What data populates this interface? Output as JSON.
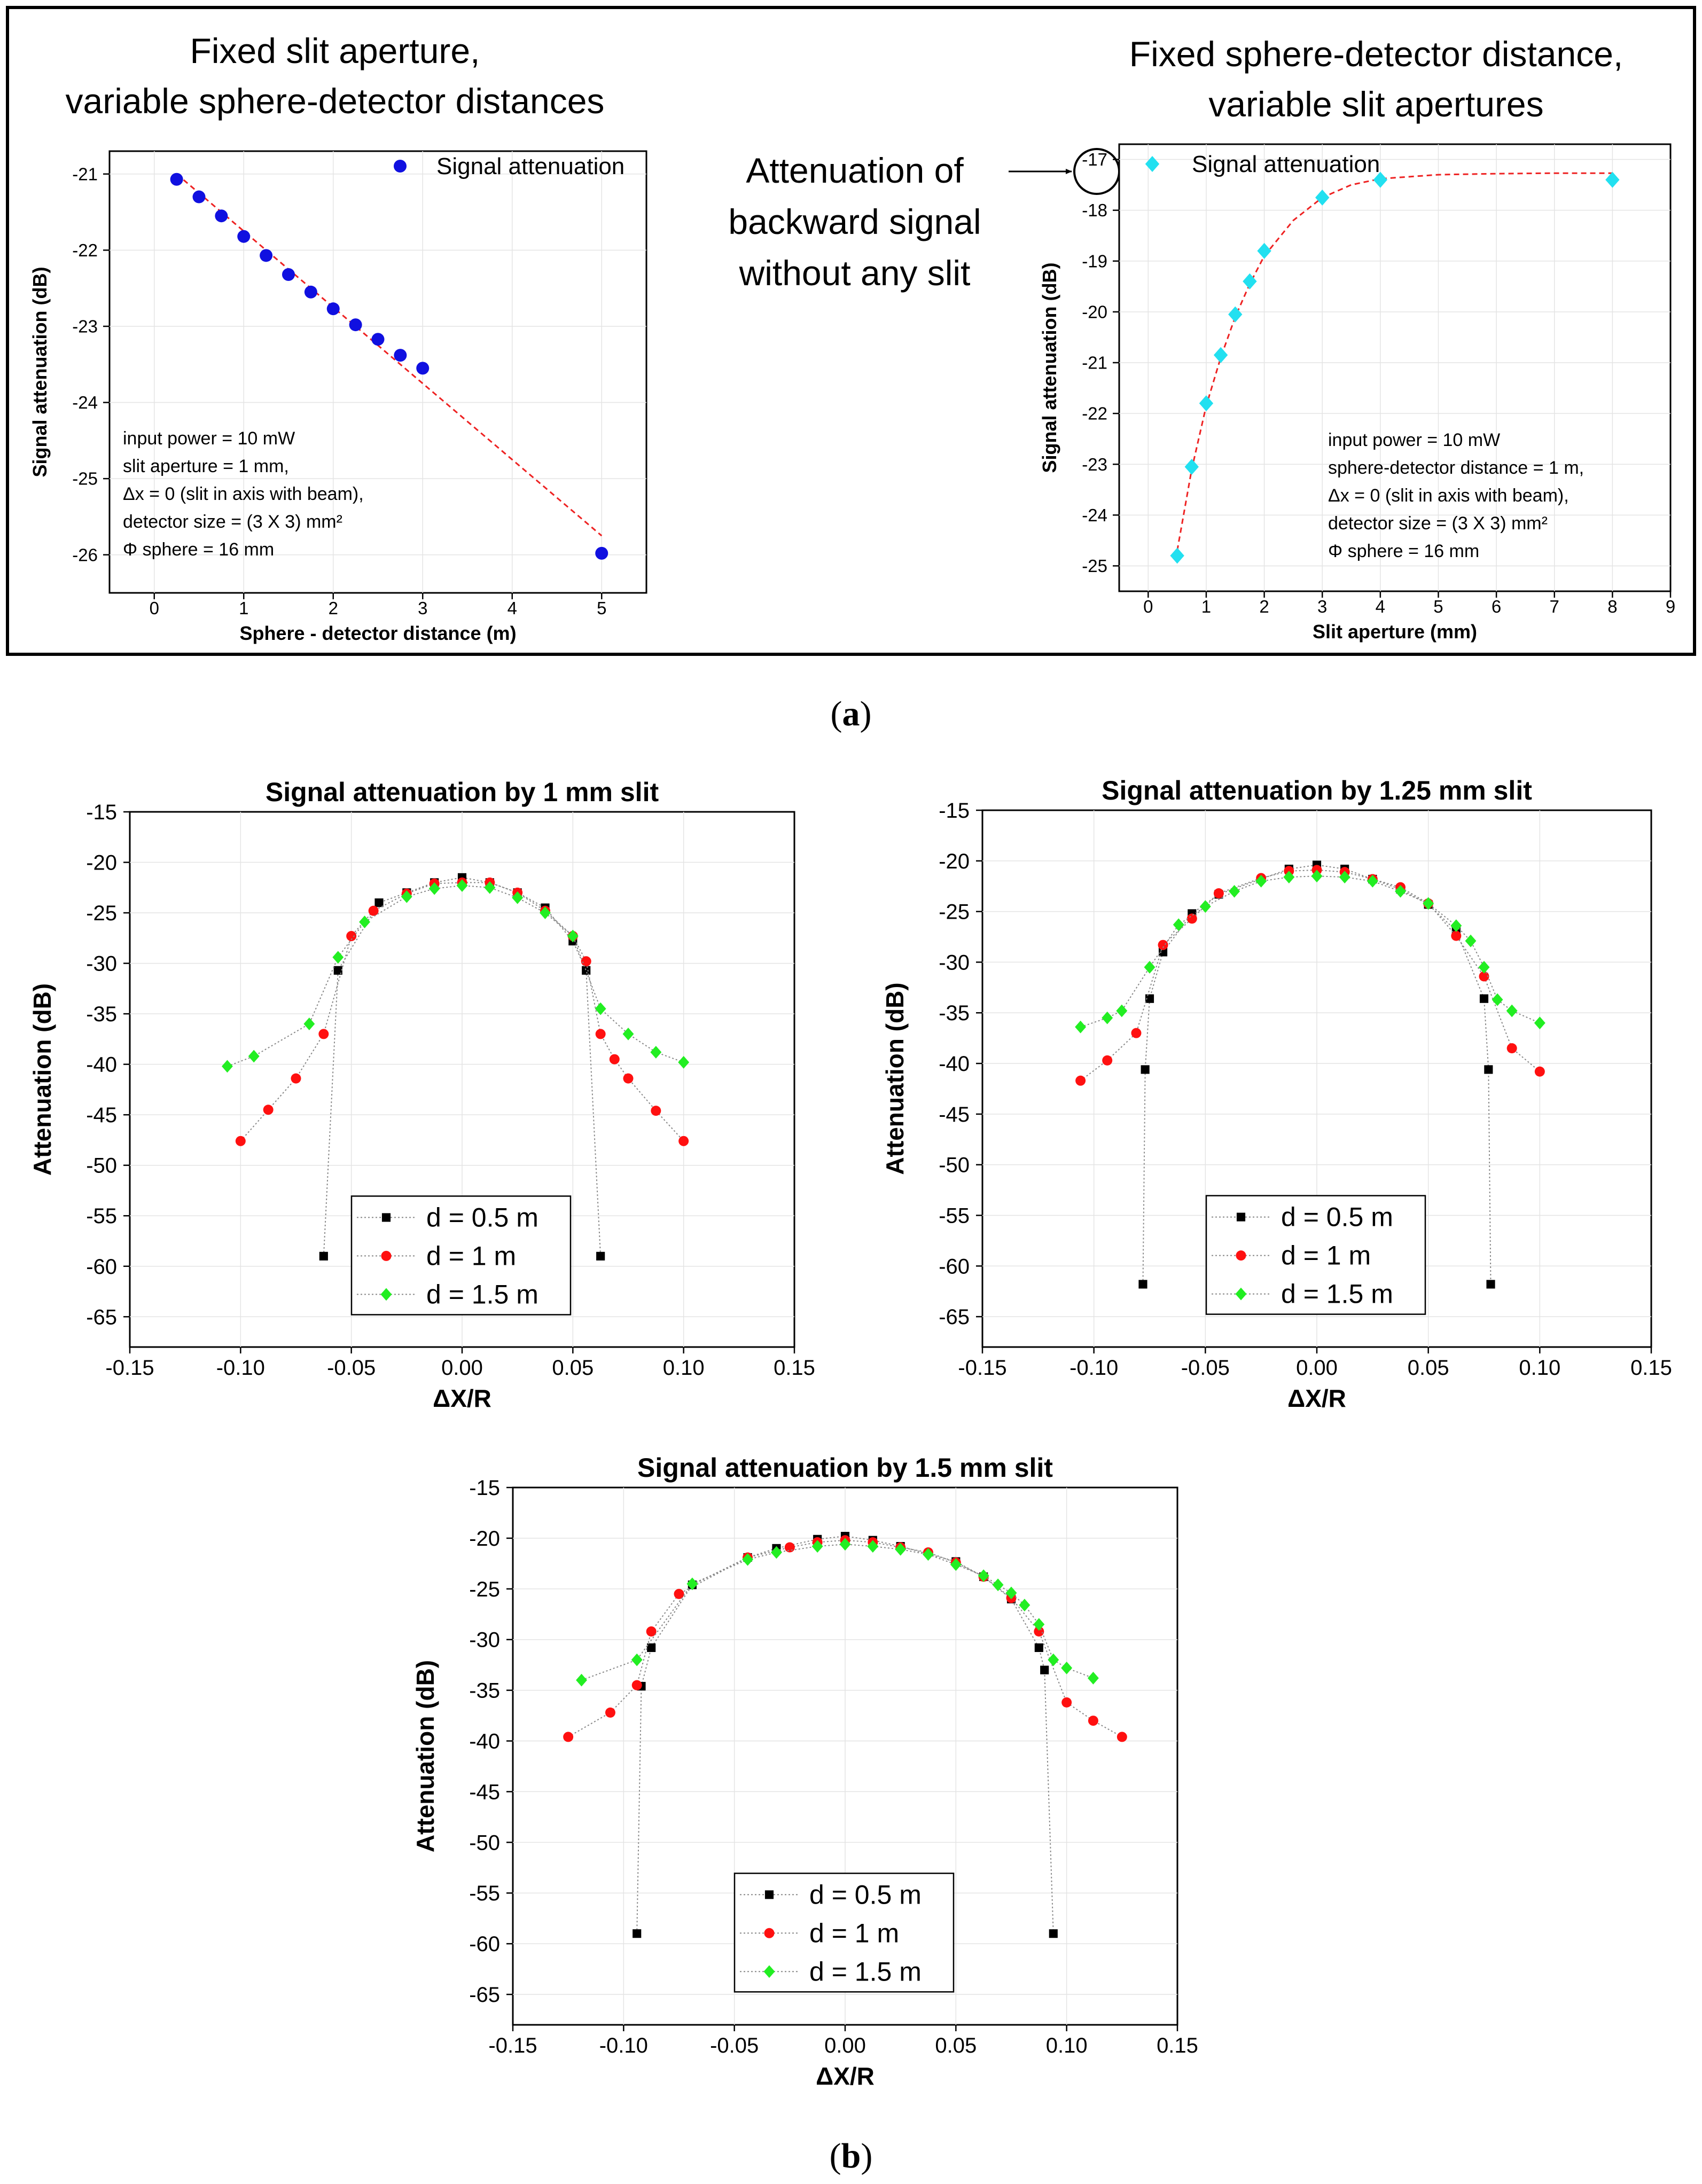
{
  "panel_a": {
    "label_open": "(",
    "label_letter": "a",
    "label_close": ")",
    "left_heading": [
      "Fixed slit aperture,",
      "variable sphere-detector distances"
    ],
    "right_heading": [
      "Fixed sphere-detector distance,",
      "variable slit apertures"
    ],
    "callout": [
      "Attenuation of",
      "backward signal",
      "without any slit"
    ]
  },
  "panel_b": {
    "label_open": "(",
    "label_letter": "b",
    "label_close": ")"
  },
  "colors": {
    "blue": "#1010e0",
    "cyan": "#22e0f0",
    "red_dash": "#ee2222",
    "black": "#000000",
    "red": "#ff1010",
    "green": "#22ee22"
  },
  "chart_data": [
    {
      "id": "a-left",
      "type": "scatter",
      "title": "",
      "xlabel": "Sphere - detector distance (m)",
      "ylabel": "Signal attenuation (dB)",
      "xlim": [
        -0.5,
        5.5
      ],
      "ylim": [
        -26.5,
        -20.7
      ],
      "xticks": [
        0,
        1,
        2,
        3,
        4,
        5
      ],
      "yticks": [
        -21,
        -22,
        -23,
        -24,
        -25,
        -26
      ],
      "legend": "top-right",
      "series": [
        {
          "name": "Signal attenuation",
          "marker": "circle",
          "color": "#1010e0",
          "x": [
            0.25,
            0.5,
            0.75,
            1.0,
            1.25,
            1.5,
            1.75,
            2.0,
            2.25,
            2.5,
            2.75,
            3.0,
            5.0
          ],
          "y": [
            -21.07,
            -21.3,
            -21.55,
            -21.82,
            -22.07,
            -22.32,
            -22.55,
            -22.77,
            -22.98,
            -23.17,
            -23.38,
            -23.55,
            -25.98
          ]
        }
      ],
      "fit": {
        "kind": "linear",
        "color": "#ee2222",
        "x": [
          0.25,
          5.0
        ],
        "y": [
          -21.0,
          -25.75
        ]
      },
      "annotation_lines": [
        "input power = 10 mW",
        "slit aperture = 1 mm,",
        "Δx = 0 (slit in axis with beam),",
        "detector size = (3 X 3) mm²",
        "Φ sphere = 16 mm"
      ]
    },
    {
      "id": "a-right",
      "type": "scatter",
      "title": "",
      "xlabel": "Slit aperture (mm)",
      "ylabel": "Signal attenuation (dB)",
      "xlim": [
        -0.5,
        9
      ],
      "ylim": [
        -25.5,
        -16.7
      ],
      "xticks": [
        0,
        1,
        2,
        3,
        4,
        5,
        6,
        7,
        8,
        9
      ],
      "yticks": [
        -17,
        -18,
        -19,
        -20,
        -21,
        -22,
        -23,
        -24,
        -25
      ],
      "legend": "top-left",
      "series": [
        {
          "name": "Signal attenuation",
          "marker": "diamond",
          "color": "#22e0f0",
          "x": [
            0.5,
            0.75,
            1.0,
            1.25,
            1.5,
            1.75,
            2.0,
            3.0,
            4.0,
            8.0
          ],
          "y": [
            -24.8,
            -23.05,
            -21.8,
            -20.85,
            -20.05,
            -19.4,
            -18.8,
            -17.75,
            -17.4,
            -17.4
          ]
        }
      ],
      "fit": {
        "kind": "exponential",
        "color": "#ee2222",
        "x": [
          0.5,
          0.75,
          1.0,
          1.25,
          1.5,
          1.75,
          2.0,
          2.5,
          3.0,
          3.5,
          4.0,
          5.0,
          6.0,
          7.0,
          8.0
        ],
        "y": [
          -24.7,
          -23.1,
          -21.85,
          -20.9,
          -20.1,
          -19.45,
          -18.9,
          -18.2,
          -17.75,
          -17.5,
          -17.38,
          -17.3,
          -17.28,
          -17.27,
          -17.27
        ]
      },
      "annotation_lines": [
        "input power = 10 mW",
        "sphere-detector distance = 1 m,",
        "Δx = 0 (slit in axis with beam),",
        "detector size = (3 X 3) mm²",
        "Φ sphere = 16 mm"
      ]
    },
    {
      "id": "b-1mm",
      "type": "scatter",
      "title": "Signal attenuation by 1 mm slit",
      "xlabel": "ΔX/R",
      "ylabel": "Attenuation (dB)",
      "xlim": [
        -0.15,
        0.15
      ],
      "ylim": [
        -68,
        -15
      ],
      "xticks": [
        -0.15,
        -0.1,
        -0.05,
        0.0,
        0.05,
        0.1,
        0.15
      ],
      "xtick_labels": [
        "-0.15",
        "-0.10",
        "-0.05",
        "0.00",
        "0.05",
        "0.10",
        "0.15"
      ],
      "yticks": [
        -15,
        -20,
        -25,
        -30,
        -35,
        -40,
        -45,
        -50,
        -55,
        -60,
        -65
      ],
      "legend": "bottom-center",
      "series": [
        {
          "name": "d = 0.5 m",
          "marker": "square",
          "color": "#000000",
          "x": [
            -0.0625,
            -0.056,
            -0.0375,
            -0.025,
            -0.0125,
            0.0,
            0.0125,
            0.025,
            0.0375,
            0.05,
            0.056,
            0.0625
          ],
          "y": [
            -59.0,
            -30.7,
            -24.0,
            -23.0,
            -22.0,
            -21.5,
            -22.0,
            -23.0,
            -24.5,
            -27.8,
            -30.7,
            -59.0
          ]
        },
        {
          "name": "d = 1 m",
          "marker": "circle",
          "color": "#ff1010",
          "x": [
            -0.1,
            -0.0875,
            -0.075,
            -0.0625,
            -0.05,
            -0.04,
            -0.025,
            -0.0125,
            0.0,
            0.0125,
            0.025,
            0.0375,
            0.05,
            0.056,
            0.0625,
            0.0688,
            0.075,
            0.0875,
            0.1
          ],
          "y": [
            -47.6,
            -44.5,
            -41.4,
            -37.0,
            -27.3,
            -24.8,
            -23.1,
            -22.1,
            -22.0,
            -22.0,
            -23.0,
            -24.8,
            -27.3,
            -29.8,
            -37.0,
            -39.5,
            -41.4,
            -44.6,
            -47.6
          ]
        },
        {
          "name": "d = 1.5 m",
          "marker": "diamond",
          "color": "#22ee22",
          "x": [
            -0.106,
            -0.094,
            -0.069,
            -0.056,
            -0.044,
            -0.025,
            -0.0125,
            0.0,
            0.0125,
            0.025,
            0.0375,
            0.05,
            0.0625,
            0.075,
            0.0875,
            0.1
          ],
          "y": [
            -40.2,
            -39.2,
            -36.0,
            -29.4,
            -25.9,
            -23.4,
            -22.6,
            -22.3,
            -22.5,
            -23.5,
            -25.0,
            -27.3,
            -34.5,
            -37.0,
            -38.8,
            -39.8
          ]
        }
      ]
    },
    {
      "id": "b-125mm",
      "type": "scatter",
      "title": "Signal attenuation by 1.25 mm slit",
      "xlabel": "ΔX/R",
      "ylabel": "Attenuation (dB)",
      "xlim": [
        -0.15,
        0.15
      ],
      "ylim": [
        -68,
        -15
      ],
      "xticks": [
        -0.15,
        -0.1,
        -0.05,
        0.0,
        0.05,
        0.1,
        0.15
      ],
      "xtick_labels": [
        "-0.15",
        "-0.10",
        "-0.05",
        "0.00",
        "0.05",
        "0.10",
        "0.15"
      ],
      "yticks": [
        -15,
        -20,
        -25,
        -30,
        -35,
        -40,
        -45,
        -50,
        -55,
        -60,
        -65
      ],
      "legend": "bottom-center",
      "series": [
        {
          "name": "d = 0.5 m",
          "marker": "square",
          "color": "#000000",
          "x": [
            -0.078,
            -0.077,
            -0.075,
            -0.069,
            -0.056,
            -0.044,
            -0.0125,
            0.0,
            0.0125,
            0.025,
            0.0375,
            0.05,
            0.0625,
            0.075,
            0.077,
            0.078
          ],
          "y": [
            -61.8,
            -40.6,
            -33.6,
            -29.0,
            -25.2,
            -23.3,
            -20.8,
            -20.4,
            -20.8,
            -21.8,
            -22.8,
            -24.3,
            -26.9,
            -33.6,
            -40.6,
            -61.8
          ]
        },
        {
          "name": "d = 1 m",
          "marker": "circle",
          "color": "#ff1010",
          "x": [
            -0.106,
            -0.094,
            -0.081,
            -0.069,
            -0.056,
            -0.044,
            -0.025,
            -0.0125,
            0.0,
            0.0125,
            0.025,
            0.0375,
            0.05,
            0.0625,
            0.075,
            0.0875,
            0.1
          ],
          "y": [
            -41.7,
            -39.7,
            -37.0,
            -28.3,
            -25.7,
            -23.2,
            -21.7,
            -21.0,
            -20.9,
            -21.1,
            -21.8,
            -22.6,
            -24.2,
            -27.4,
            -31.4,
            -38.5,
            -40.8
          ]
        },
        {
          "name": "d = 1.5 m",
          "marker": "diamond",
          "color": "#22ee22",
          "x": [
            -0.106,
            -0.094,
            -0.0875,
            -0.075,
            -0.062,
            -0.05,
            -0.037,
            -0.025,
            -0.0125,
            0.0,
            0.0125,
            0.025,
            0.0375,
            0.05,
            0.0625,
            0.069,
            0.075,
            0.081,
            0.0875,
            0.1
          ],
          "y": [
            -36.4,
            -35.5,
            -34.8,
            -30.5,
            -26.3,
            -24.5,
            -23.0,
            -22.0,
            -21.6,
            -21.5,
            -21.6,
            -22.0,
            -23.0,
            -24.2,
            -26.4,
            -27.9,
            -30.5,
            -33.7,
            -34.8,
            -36.0
          ]
        }
      ]
    },
    {
      "id": "b-15mm",
      "type": "scatter",
      "title": "Signal attenuation by 1.5 mm slit",
      "xlabel": "ΔX/R",
      "ylabel": "Attenuation (dB)",
      "xlim": [
        -0.15,
        0.15
      ],
      "ylim": [
        -68,
        -15
      ],
      "xticks": [
        -0.15,
        -0.1,
        -0.05,
        0.0,
        0.05,
        0.1,
        0.15
      ],
      "xtick_labels": [
        "-0.15",
        "-0.10",
        "-0.05",
        "0.00",
        "0.05",
        "0.10",
        "0.15"
      ],
      "yticks": [
        -15,
        -20,
        -25,
        -30,
        -35,
        -40,
        -45,
        -50,
        -55,
        -60,
        -65
      ],
      "legend": "bottom-center",
      "series": [
        {
          "name": "d = 0.5 m",
          "marker": "square",
          "color": "#000000",
          "x": [
            -0.094,
            -0.092,
            -0.0875,
            -0.069,
            -0.044,
            -0.031,
            -0.0125,
            0.0,
            0.0125,
            0.025,
            0.05,
            0.0625,
            0.075,
            0.0875,
            0.09,
            0.094
          ],
          "y": [
            -59.0,
            -34.6,
            -30.8,
            -24.6,
            -21.9,
            -21.0,
            -20.1,
            -19.8,
            -20.2,
            -20.8,
            -22.3,
            -23.8,
            -26.0,
            -30.8,
            -33.0,
            -59.0
          ]
        },
        {
          "name": "d = 1 m",
          "marker": "circle",
          "color": "#ff1010",
          "x": [
            -0.125,
            -0.106,
            -0.094,
            -0.0875,
            -0.075,
            -0.044,
            -0.025,
            -0.0125,
            0.0,
            0.0125,
            0.025,
            0.0375,
            0.05,
            0.0625,
            0.075,
            0.0875,
            0.1,
            0.112,
            0.125
          ],
          "y": [
            -39.6,
            -37.2,
            -34.5,
            -29.2,
            -25.5,
            -21.9,
            -20.9,
            -20.4,
            -20.2,
            -20.4,
            -20.9,
            -21.4,
            -22.4,
            -23.8,
            -25.9,
            -29.2,
            -36.2,
            -38.0,
            -39.6
          ]
        },
        {
          "name": "d = 1.5 m",
          "marker": "diamond",
          "color": "#22ee22",
          "x": [
            -0.119,
            -0.094,
            -0.069,
            -0.044,
            -0.031,
            -0.0125,
            0.0,
            0.0125,
            0.025,
            0.0375,
            0.05,
            0.0625,
            0.069,
            0.075,
            0.081,
            0.0875,
            0.094,
            0.1,
            0.112
          ],
          "y": [
            -34.0,
            -32.0,
            -24.5,
            -22.1,
            -21.4,
            -20.8,
            -20.6,
            -20.8,
            -21.1,
            -21.6,
            -22.6,
            -23.7,
            -24.6,
            -25.4,
            -26.6,
            -28.5,
            -32.0,
            -32.8,
            -33.8
          ]
        }
      ]
    }
  ]
}
